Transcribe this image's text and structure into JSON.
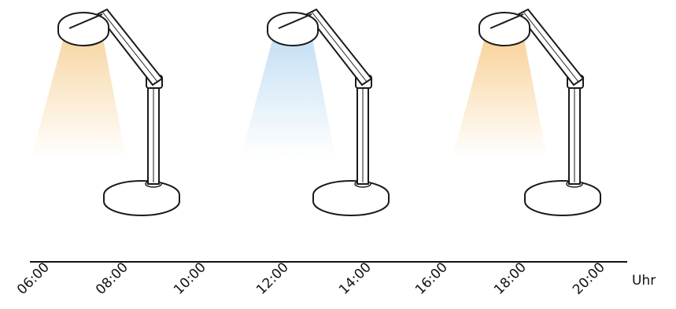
{
  "lamps": [
    {
      "light_color": "#f6cf93",
      "light_name": "warm-light"
    },
    {
      "light_color": "#b9d9f2",
      "light_name": "cool-light"
    },
    {
      "light_color": "#f7c985",
      "light_name": "warm-light"
    }
  ],
  "timeline": {
    "unit": "Uhr",
    "ticks": [
      "06:00",
      "08:00",
      "10:00",
      "12:00",
      "14:00",
      "16:00",
      "18:00",
      "20:00"
    ]
  },
  "colors": {
    "line": "#111111",
    "lamp_outline": "#1a1a1a",
    "lamp_fill": "#ffffff",
    "base_shadow": "#e6e6e6"
  }
}
